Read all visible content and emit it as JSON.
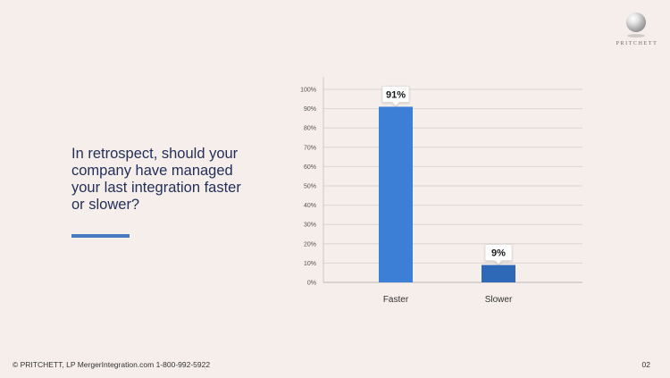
{
  "logo": {
    "text": "PRITCHETT"
  },
  "question": {
    "text": "In retrospect, should your company have managed your last integration faster or slower?"
  },
  "footer": {
    "copyright": "© PRITCHETT, LP MergerIntegration.com 1-800-992-5922",
    "page_number": "02"
  },
  "colors": {
    "background": "#f5eeeb",
    "bar_faster": "#3b7fd6",
    "bar_slower": "#2e69b8",
    "accent_underline": "#4a78c2"
  },
  "chart_data": {
    "type": "bar",
    "categories": [
      "Faster",
      "Slower"
    ],
    "values": [
      91,
      9
    ],
    "data_labels": [
      "91%",
      "9%"
    ],
    "ylim": [
      0,
      100
    ],
    "yticks": [
      0,
      10,
      20,
      30,
      40,
      50,
      60,
      70,
      80,
      90,
      100
    ],
    "ytick_labels": [
      "0%",
      "10%",
      "20%",
      "30%",
      "40%",
      "50%",
      "60%",
      "70%",
      "80%",
      "90%",
      "100%"
    ],
    "grid": true,
    "legend": "none",
    "title": "",
    "xlabel": "",
    "ylabel": ""
  }
}
